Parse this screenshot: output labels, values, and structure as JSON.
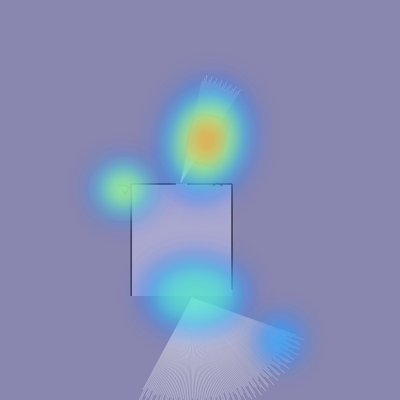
{
  "scene": {
    "background_color": "#8987b0",
    "room_fill_color": "#a9a8cf",
    "wall_color": "#1c1b2b",
    "ray_color": "#ffffff"
  },
  "heatmap": {
    "colormap": "jet",
    "blobs": [
      {
        "name": "heat-blob-upper-beam",
        "intensity": 1.0
      },
      {
        "name": "heat-blob-left-corner",
        "intensity": 0.85
      },
      {
        "name": "heat-blob-room-center",
        "intensity": 0.55
      },
      {
        "name": "heat-blob-lower-right",
        "intensity": 0.45
      }
    ]
  }
}
